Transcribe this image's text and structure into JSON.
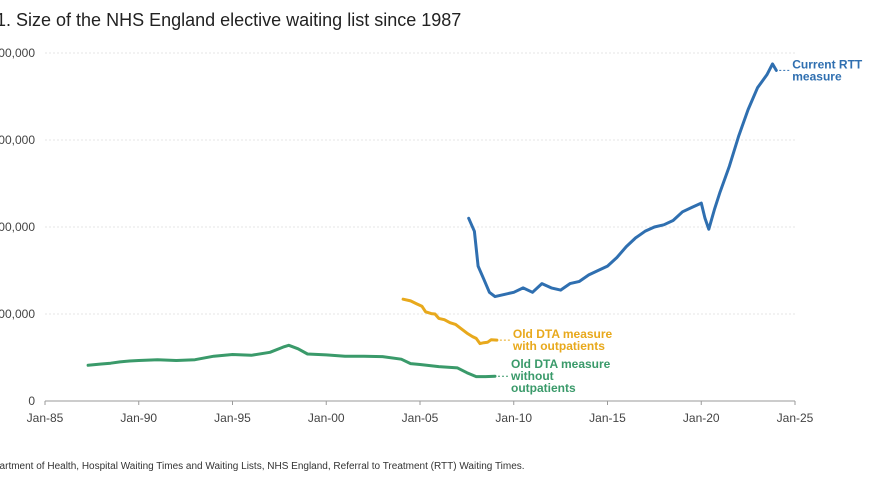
{
  "title": "1. Size of the NHS England elective waiting list since 1987",
  "source": "partment of Health, Hospital Waiting Times and Waiting Lists, NHS England, Referral to Treatment (RTT) Waiting Times.",
  "chart_data": {
    "type": "line",
    "title": "1. Size of the NHS England elective waiting list since 1987",
    "xlabel": "",
    "ylabel": "",
    "x_range": [
      1985,
      2025
    ],
    "ylim": [
      0,
      8000000
    ],
    "x_ticks": [
      {
        "x": 1985,
        "label": "Jan-85"
      },
      {
        "x": 1990,
        "label": "Jan-90"
      },
      {
        "x": 1995,
        "label": "Jan-95"
      },
      {
        "x": 2000,
        "label": "Jan-00"
      },
      {
        "x": 2005,
        "label": "Jan-05"
      },
      {
        "x": 2010,
        "label": "Jan-10"
      },
      {
        "x": 2015,
        "label": "Jan-15"
      },
      {
        "x": 2020,
        "label": "Jan-20"
      },
      {
        "x": 2025,
        "label": "Jan-25"
      }
    ],
    "y_ticks": [
      {
        "y": 0,
        "label": "0"
      },
      {
        "y": 2000000,
        "label": "00,000"
      },
      {
        "y": 4000000,
        "label": "00,000"
      },
      {
        "y": 6000000,
        "label": "00,000"
      },
      {
        "y": 8000000,
        "label": "00,000"
      }
    ],
    "grid": true,
    "series": [
      {
        "name": "Old DTA measure without outpatients",
        "label_lines": [
          "Old DTA measure",
          "without",
          "outpatients"
        ],
        "color": "#3a9a6a",
        "points": [
          [
            1987.3,
            820000
          ],
          [
            1988,
            850000
          ],
          [
            1988.5,
            870000
          ],
          [
            1989,
            900000
          ],
          [
            1989.5,
            920000
          ],
          [
            1990,
            930000
          ],
          [
            1991,
            950000
          ],
          [
            1992,
            930000
          ],
          [
            1993,
            950000
          ],
          [
            1994,
            1030000
          ],
          [
            1995,
            1070000
          ],
          [
            1996,
            1050000
          ],
          [
            1997,
            1120000
          ],
          [
            1997.7,
            1240000
          ],
          [
            1998,
            1280000
          ],
          [
            1998.5,
            1200000
          ],
          [
            1999,
            1080000
          ],
          [
            2000,
            1060000
          ],
          [
            2001,
            1030000
          ],
          [
            2002,
            1030000
          ],
          [
            2003,
            1020000
          ],
          [
            2004,
            960000
          ],
          [
            2004.5,
            860000
          ],
          [
            2005,
            840000
          ],
          [
            2006,
            790000
          ],
          [
            2007,
            760000
          ],
          [
            2007.5,
            650000
          ],
          [
            2008,
            560000
          ],
          [
            2008.5,
            560000
          ],
          [
            2009,
            570000
          ]
        ]
      },
      {
        "name": "Old DTA measure with outpatients",
        "label_lines": [
          "Old DTA measure",
          "with outpatients"
        ],
        "color": "#e8a91c",
        "points": [
          [
            2004.1,
            2340000
          ],
          [
            2004.5,
            2300000
          ],
          [
            2004.8,
            2240000
          ],
          [
            2005.1,
            2180000
          ],
          [
            2005.3,
            2050000
          ],
          [
            2005.6,
            2010000
          ],
          [
            2005.8,
            2000000
          ],
          [
            2006,
            1900000
          ],
          [
            2006.3,
            1870000
          ],
          [
            2006.6,
            1800000
          ],
          [
            2006.9,
            1760000
          ],
          [
            2007.2,
            1660000
          ],
          [
            2007.5,
            1560000
          ],
          [
            2007.8,
            1480000
          ],
          [
            2008,
            1440000
          ],
          [
            2008.2,
            1320000
          ],
          [
            2008.4,
            1340000
          ],
          [
            2008.6,
            1350000
          ],
          [
            2008.8,
            1410000
          ],
          [
            2009.1,
            1400000
          ]
        ]
      },
      {
        "name": "Current RTT measure",
        "label_lines": [
          "Current RTT",
          "measure"
        ],
        "color": "#2f6fb0",
        "points": [
          [
            2007.6,
            4200000
          ],
          [
            2007.9,
            3900000
          ],
          [
            2008.1,
            3100000
          ],
          [
            2008.4,
            2800000
          ],
          [
            2008.7,
            2500000
          ],
          [
            2009,
            2400000
          ],
          [
            2009.5,
            2450000
          ],
          [
            2010,
            2500000
          ],
          [
            2010.5,
            2600000
          ],
          [
            2011,
            2500000
          ],
          [
            2011.5,
            2700000
          ],
          [
            2012,
            2600000
          ],
          [
            2012.5,
            2550000
          ],
          [
            2013,
            2700000
          ],
          [
            2013.5,
            2750000
          ],
          [
            2014,
            2900000
          ],
          [
            2014.5,
            3000000
          ],
          [
            2015,
            3100000
          ],
          [
            2015.5,
            3300000
          ],
          [
            2016,
            3550000
          ],
          [
            2016.5,
            3750000
          ],
          [
            2017,
            3900000
          ],
          [
            2017.5,
            4000000
          ],
          [
            2018,
            4050000
          ],
          [
            2018.5,
            4150000
          ],
          [
            2019,
            4350000
          ],
          [
            2019.5,
            4450000
          ],
          [
            2020,
            4550000
          ],
          [
            2020.2,
            4200000
          ],
          [
            2020.4,
            3950000
          ],
          [
            2020.7,
            4400000
          ],
          [
            2021,
            4800000
          ],
          [
            2021.5,
            5400000
          ],
          [
            2022,
            6100000
          ],
          [
            2022.5,
            6700000
          ],
          [
            2023,
            7200000
          ],
          [
            2023.5,
            7500000
          ],
          [
            2023.8,
            7750000
          ],
          [
            2024,
            7600000
          ]
        ]
      }
    ]
  }
}
